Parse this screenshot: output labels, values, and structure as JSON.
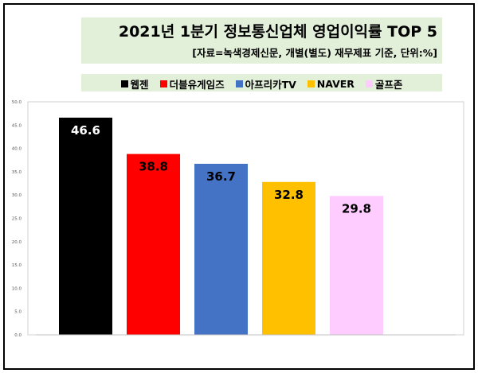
{
  "chart_data": {
    "type": "bar",
    "title": "2021년 1분기 정보통신업체 영업이익률 TOP 5",
    "subtitle": "[자료=녹색경제신문, 개별(별도) 재무제표 기준, 단위:%]",
    "categories": [
      "웹젠",
      "더블유게임즈",
      "아프리카TV",
      "NAVER",
      "골프존"
    ],
    "values": [
      46.6,
      38.8,
      36.7,
      32.8,
      29.8
    ],
    "colors": [
      "#000000",
      "#ff0000",
      "#4472c4",
      "#ffc000",
      "#ffccff"
    ],
    "label_colors": [
      "#ffffff",
      "#000000",
      "#000000",
      "#000000",
      "#000000"
    ],
    "ylim": [
      0,
      50
    ],
    "yticks": [
      "0.0",
      "5.0",
      "10.0",
      "15.0",
      "20.0",
      "25.0",
      "30.0",
      "35.0",
      "40.0",
      "45.0",
      "50.0"
    ],
    "grid": false,
    "legend": "top"
  }
}
